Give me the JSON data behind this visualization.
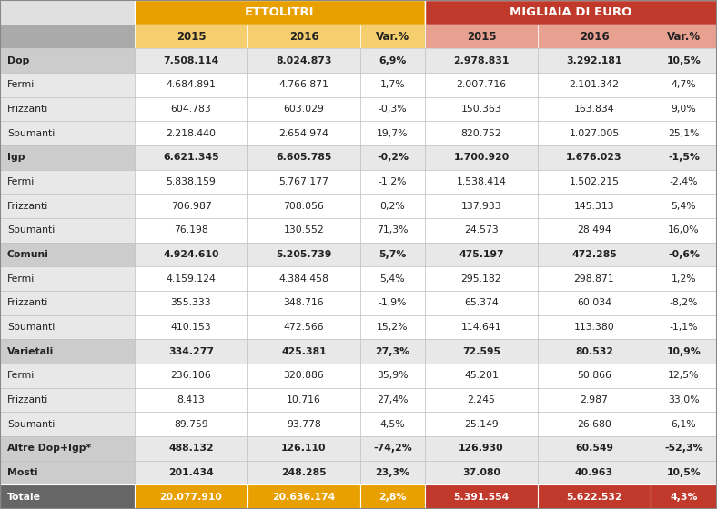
{
  "header1": "ETTOLITRI",
  "header2": "MIGLIAIA DI EURO",
  "col_headers": [
    "2015",
    "2016",
    "Var.%",
    "2015",
    "2016",
    "Var.%"
  ],
  "rows": [
    {
      "label": "Dop",
      "bold": true,
      "group": true,
      "total": false,
      "values": [
        "7.508.114",
        "8.024.873",
        "6,9%",
        "2.978.831",
        "3.292.181",
        "10,5%"
      ]
    },
    {
      "label": "Fermi",
      "bold": false,
      "group": false,
      "total": false,
      "values": [
        "4.684.891",
        "4.766.871",
        "1,7%",
        "2.007.716",
        "2.101.342",
        "4,7%"
      ]
    },
    {
      "label": "Frizzanti",
      "bold": false,
      "group": false,
      "total": false,
      "values": [
        "604.783",
        "603.029",
        "-0,3%",
        "150.363",
        "163.834",
        "9,0%"
      ]
    },
    {
      "label": "Spumanti",
      "bold": false,
      "group": false,
      "total": false,
      "values": [
        "2.218.440",
        "2.654.974",
        "19,7%",
        "820.752",
        "1.027.005",
        "25,1%"
      ]
    },
    {
      "label": "Igp",
      "bold": true,
      "group": true,
      "total": false,
      "values": [
        "6.621.345",
        "6.605.785",
        "-0,2%",
        "1.700.920",
        "1.676.023",
        "-1,5%"
      ]
    },
    {
      "label": "Fermi",
      "bold": false,
      "group": false,
      "total": false,
      "values": [
        "5.838.159",
        "5.767.177",
        "-1,2%",
        "1.538.414",
        "1.502.215",
        "-2,4%"
      ]
    },
    {
      "label": "Frizzanti",
      "bold": false,
      "group": false,
      "total": false,
      "values": [
        "706.987",
        "708.056",
        "0,2%",
        "137.933",
        "145.313",
        "5,4%"
      ]
    },
    {
      "label": "Spumanti",
      "bold": false,
      "group": false,
      "total": false,
      "values": [
        "76.198",
        "130.552",
        "71,3%",
        "24.573",
        "28.494",
        "16,0%"
      ]
    },
    {
      "label": "Comuni",
      "bold": true,
      "group": true,
      "total": false,
      "values": [
        "4.924.610",
        "5.205.739",
        "5,7%",
        "475.197",
        "472.285",
        "-0,6%"
      ]
    },
    {
      "label": "Fermi",
      "bold": false,
      "group": false,
      "total": false,
      "values": [
        "4.159.124",
        "4.384.458",
        "5,4%",
        "295.182",
        "298.871",
        "1,2%"
      ]
    },
    {
      "label": "Frizzanti",
      "bold": false,
      "group": false,
      "total": false,
      "values": [
        "355.333",
        "348.716",
        "-1,9%",
        "65.374",
        "60.034",
        "-8,2%"
      ]
    },
    {
      "label": "Spumanti",
      "bold": false,
      "group": false,
      "total": false,
      "values": [
        "410.153",
        "472.566",
        "15,2%",
        "114.641",
        "113.380",
        "-1,1%"
      ]
    },
    {
      "label": "Varietali",
      "bold": true,
      "group": true,
      "total": false,
      "values": [
        "334.277",
        "425.381",
        "27,3%",
        "72.595",
        "80.532",
        "10,9%"
      ]
    },
    {
      "label": "Fermi",
      "bold": false,
      "group": false,
      "total": false,
      "values": [
        "236.106",
        "320.886",
        "35,9%",
        "45.201",
        "50.866",
        "12,5%"
      ]
    },
    {
      "label": "Frizzanti",
      "bold": false,
      "group": false,
      "total": false,
      "values": [
        "8.413",
        "10.716",
        "27,4%",
        "2.245",
        "2.987",
        "33,0%"
      ]
    },
    {
      "label": "Spumanti",
      "bold": false,
      "group": false,
      "total": false,
      "values": [
        "89.759",
        "93.778",
        "4,5%",
        "25.149",
        "26.680",
        "6,1%"
      ]
    },
    {
      "label": "Altre Dop+Igp*",
      "bold": true,
      "group": true,
      "total": false,
      "values": [
        "488.132",
        "126.110",
        "-74,2%",
        "126.930",
        "60.549",
        "-52,3%"
      ]
    },
    {
      "label": "Mosti",
      "bold": true,
      "group": true,
      "total": false,
      "values": [
        "201.434",
        "248.285",
        "23,3%",
        "37.080",
        "40.963",
        "10,5%"
      ]
    },
    {
      "label": "Totale",
      "bold": true,
      "group": false,
      "total": true,
      "values": [
        "20.077.910",
        "20.636.174",
        "2,8%",
        "5.391.554",
        "5.622.532",
        "4,3%"
      ]
    }
  ],
  "c_gold": "#E8A000",
  "c_gold_light": "#F5CE6E",
  "c_red": "#C0392B",
  "c_red_light": "#E8A090",
  "c_total_lbl": "#666666",
  "c_group_lbl": "#CCCCCC",
  "c_sub_lbl": "#E8E8E8",
  "c_group_data": "#E8E8E8",
  "c_sub_data": "#FFFFFF",
  "c_text": "#222222",
  "c_white": "#FFFFFF",
  "c_border": "#BBBBBB",
  "c_header_lbl": "#AAAAAA"
}
